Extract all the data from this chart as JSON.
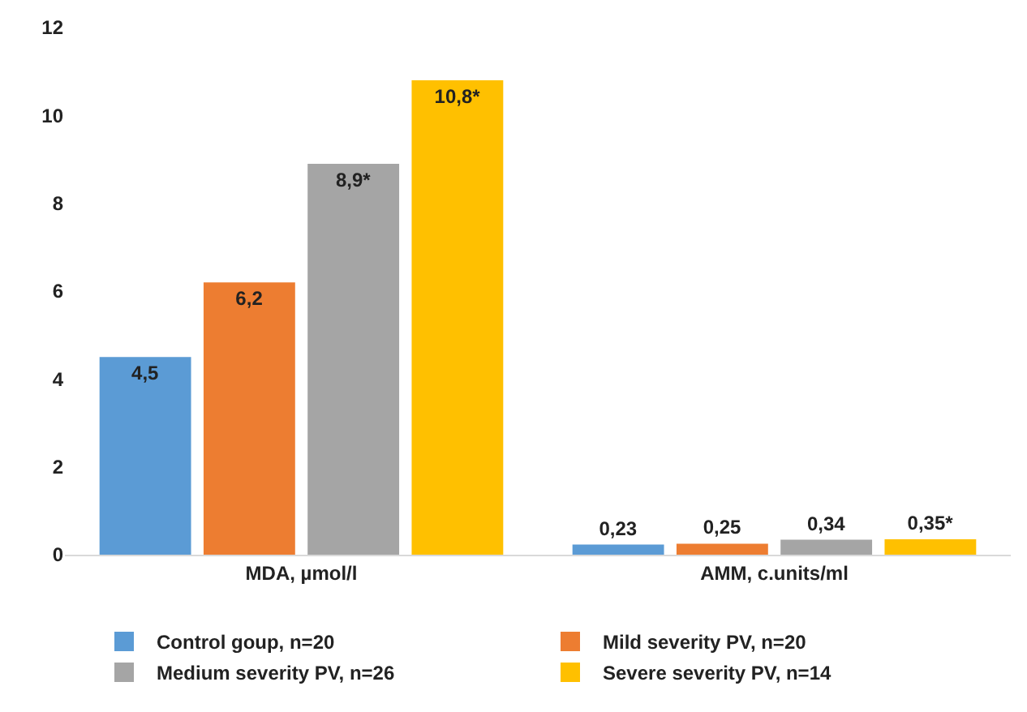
{
  "chart_data": {
    "type": "bar",
    "categories": [
      "MDA, µmol/l",
      "AMM, c.units/ml"
    ],
    "series": [
      {
        "name": "Control goup, n=20",
        "color": "#5b9bd5",
        "values": [
          4.5,
          0.23
        ],
        "value_labels": [
          "4,5",
          "0,23"
        ]
      },
      {
        "name": "Mild severity PV, n=20",
        "color": "#ed7d31",
        "values": [
          6.2,
          0.25
        ],
        "value_labels": [
          "6,2",
          "0,25"
        ]
      },
      {
        "name": "Medium severity PV, n=26",
        "color": "#a5a5a5",
        "values": [
          8.9,
          0.34
        ],
        "value_labels": [
          "8,9*",
          "0,34"
        ]
      },
      {
        "name": "Severe severity PV, n=14",
        "color": "#ffc000",
        "values": [
          10.8,
          0.35
        ],
        "value_labels": [
          "10,8*",
          "0,35*"
        ]
      }
    ],
    "ylim": [
      0,
      12
    ],
    "yticks": [
      0,
      2,
      4,
      6,
      8,
      10,
      12
    ],
    "legend": "bottom"
  }
}
